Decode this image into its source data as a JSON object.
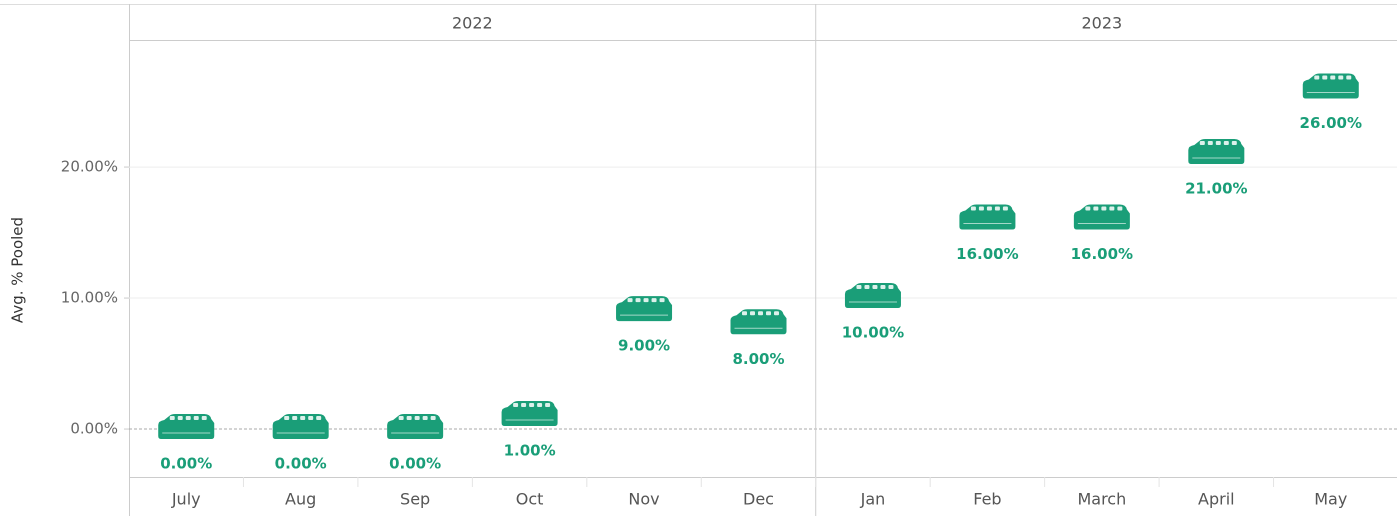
{
  "chart_data": {
    "type": "icon-scatter",
    "y_label": "Avg. % Pooled",
    "groups": [
      {
        "name": "2022",
        "categories": [
          "July",
          "Aug",
          "Sep",
          "Oct",
          "Nov",
          "Dec"
        ]
      },
      {
        "name": "2023",
        "categories": [
          "Jan",
          "Feb",
          "March",
          "April",
          "May"
        ]
      }
    ],
    "values": [
      0,
      0,
      0,
      1,
      9,
      8,
      10,
      16,
      16,
      21,
      26
    ],
    "value_labels": [
      "0.00%",
      "0.00%",
      "0.00%",
      "1.00%",
      "9.00%",
      "8.00%",
      "10.00%",
      "16.00%",
      "16.00%",
      "21.00%",
      "26.00%"
    ],
    "color": "#1a9e78",
    "ylim": [
      -3.66,
      29.7
    ],
    "yticks": [
      {
        "value": 0,
        "label": "0.00%"
      },
      {
        "value": 10,
        "label": "10.00%"
      },
      {
        "value": 20,
        "label": "20.00%"
      }
    ],
    "grid": true
  }
}
